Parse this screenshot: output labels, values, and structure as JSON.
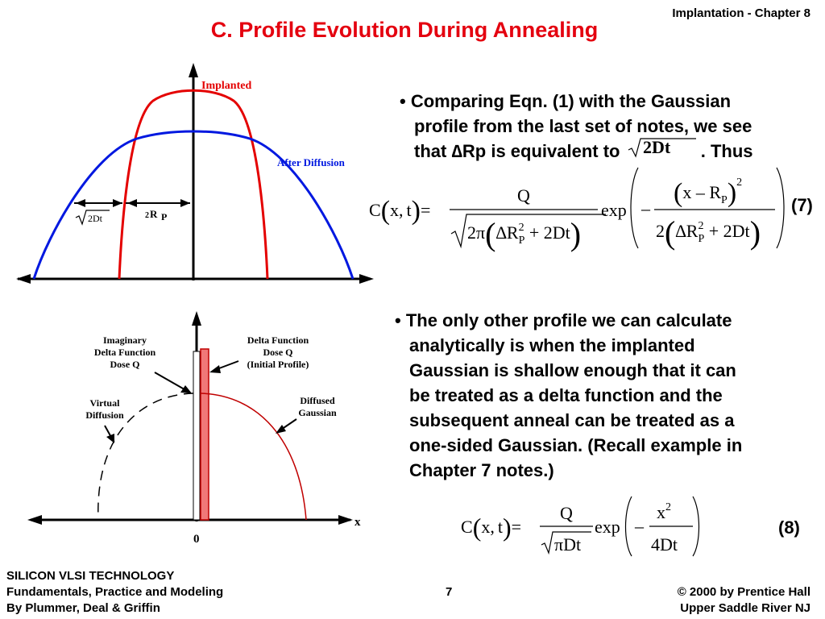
{
  "header": {
    "chapter": "Implantation - Chapter 8",
    "title": "C. Profile Evolution During Annealing"
  },
  "figure1": {
    "label_implanted": "Implanted",
    "label_after": "After Diffusion",
    "label_sqrt2dt": "2Dt",
    "label_rp": "R",
    "label_rp_pre": "2",
    "label_rp_sub": "P"
  },
  "figure2": {
    "label_imag_1": "Imaginary",
    "label_imag_2": "Delta Function",
    "label_imag_3": "Dose Q",
    "label_delta_1": "Delta Function",
    "label_delta_2": "Dose Q",
    "label_delta_3": "(Initial Profile)",
    "label_virtual_1": "Virtual",
    "label_virtual_2": "Diffusion",
    "label_diffused_1": "Diffused",
    "label_diffused_2": "Gaussian",
    "axis_x": "x",
    "axis_zero": "0"
  },
  "text1": {
    "line1": "• Comparing Eqn. (1) with the Gaussian",
    "line2": "profile from the last set of notes, we see",
    "line3a": "that ∆Rp is equivalent to",
    "line3b": ". Thus",
    "sqrt_term": "2Dt"
  },
  "eq7": {
    "number": "(7)",
    "lhs": "C(x,t)=",
    "num": "Q",
    "den": "2π(∆R²P + 2Dt)",
    "exp": "exp",
    "minus": "–",
    "inner_num": "(x – RP)²",
    "inner_den": "2(∆R²P + 2Dt)"
  },
  "text2": {
    "line1": "• The only other profile we can calculate",
    "line2": "analytically is when the implanted",
    "line3": "Gaussian is shallow enough that it can",
    "line4": "be treated as a delta function and the",
    "line5": "subsequent anneal can be treated as a",
    "line6": "one-sided Gaussian. (Recall example in",
    "line7": "Chapter 7 notes.)"
  },
  "eq8": {
    "number": "(8)",
    "lhs": "C(x,t)=",
    "num": "Q",
    "den": "πDt",
    "exp": "exp",
    "minus": "–",
    "inner_num": "x²",
    "inner_den": "4Dt"
  },
  "footer": {
    "left1": "SILICON VLSI TECHNOLOGY",
    "left2": "Fundamentals, Practice and Modeling",
    "left3": "By Plummer, Deal & Griffin",
    "page": "7",
    "right1": "© 2000 by Prentice Hall",
    "right2": "Upper Saddle River NJ"
  },
  "colors": {
    "title": "#e4000f",
    "implanted": "#e40000",
    "after_diffusion": "#0018e0",
    "delta_fill": "#f07878"
  }
}
